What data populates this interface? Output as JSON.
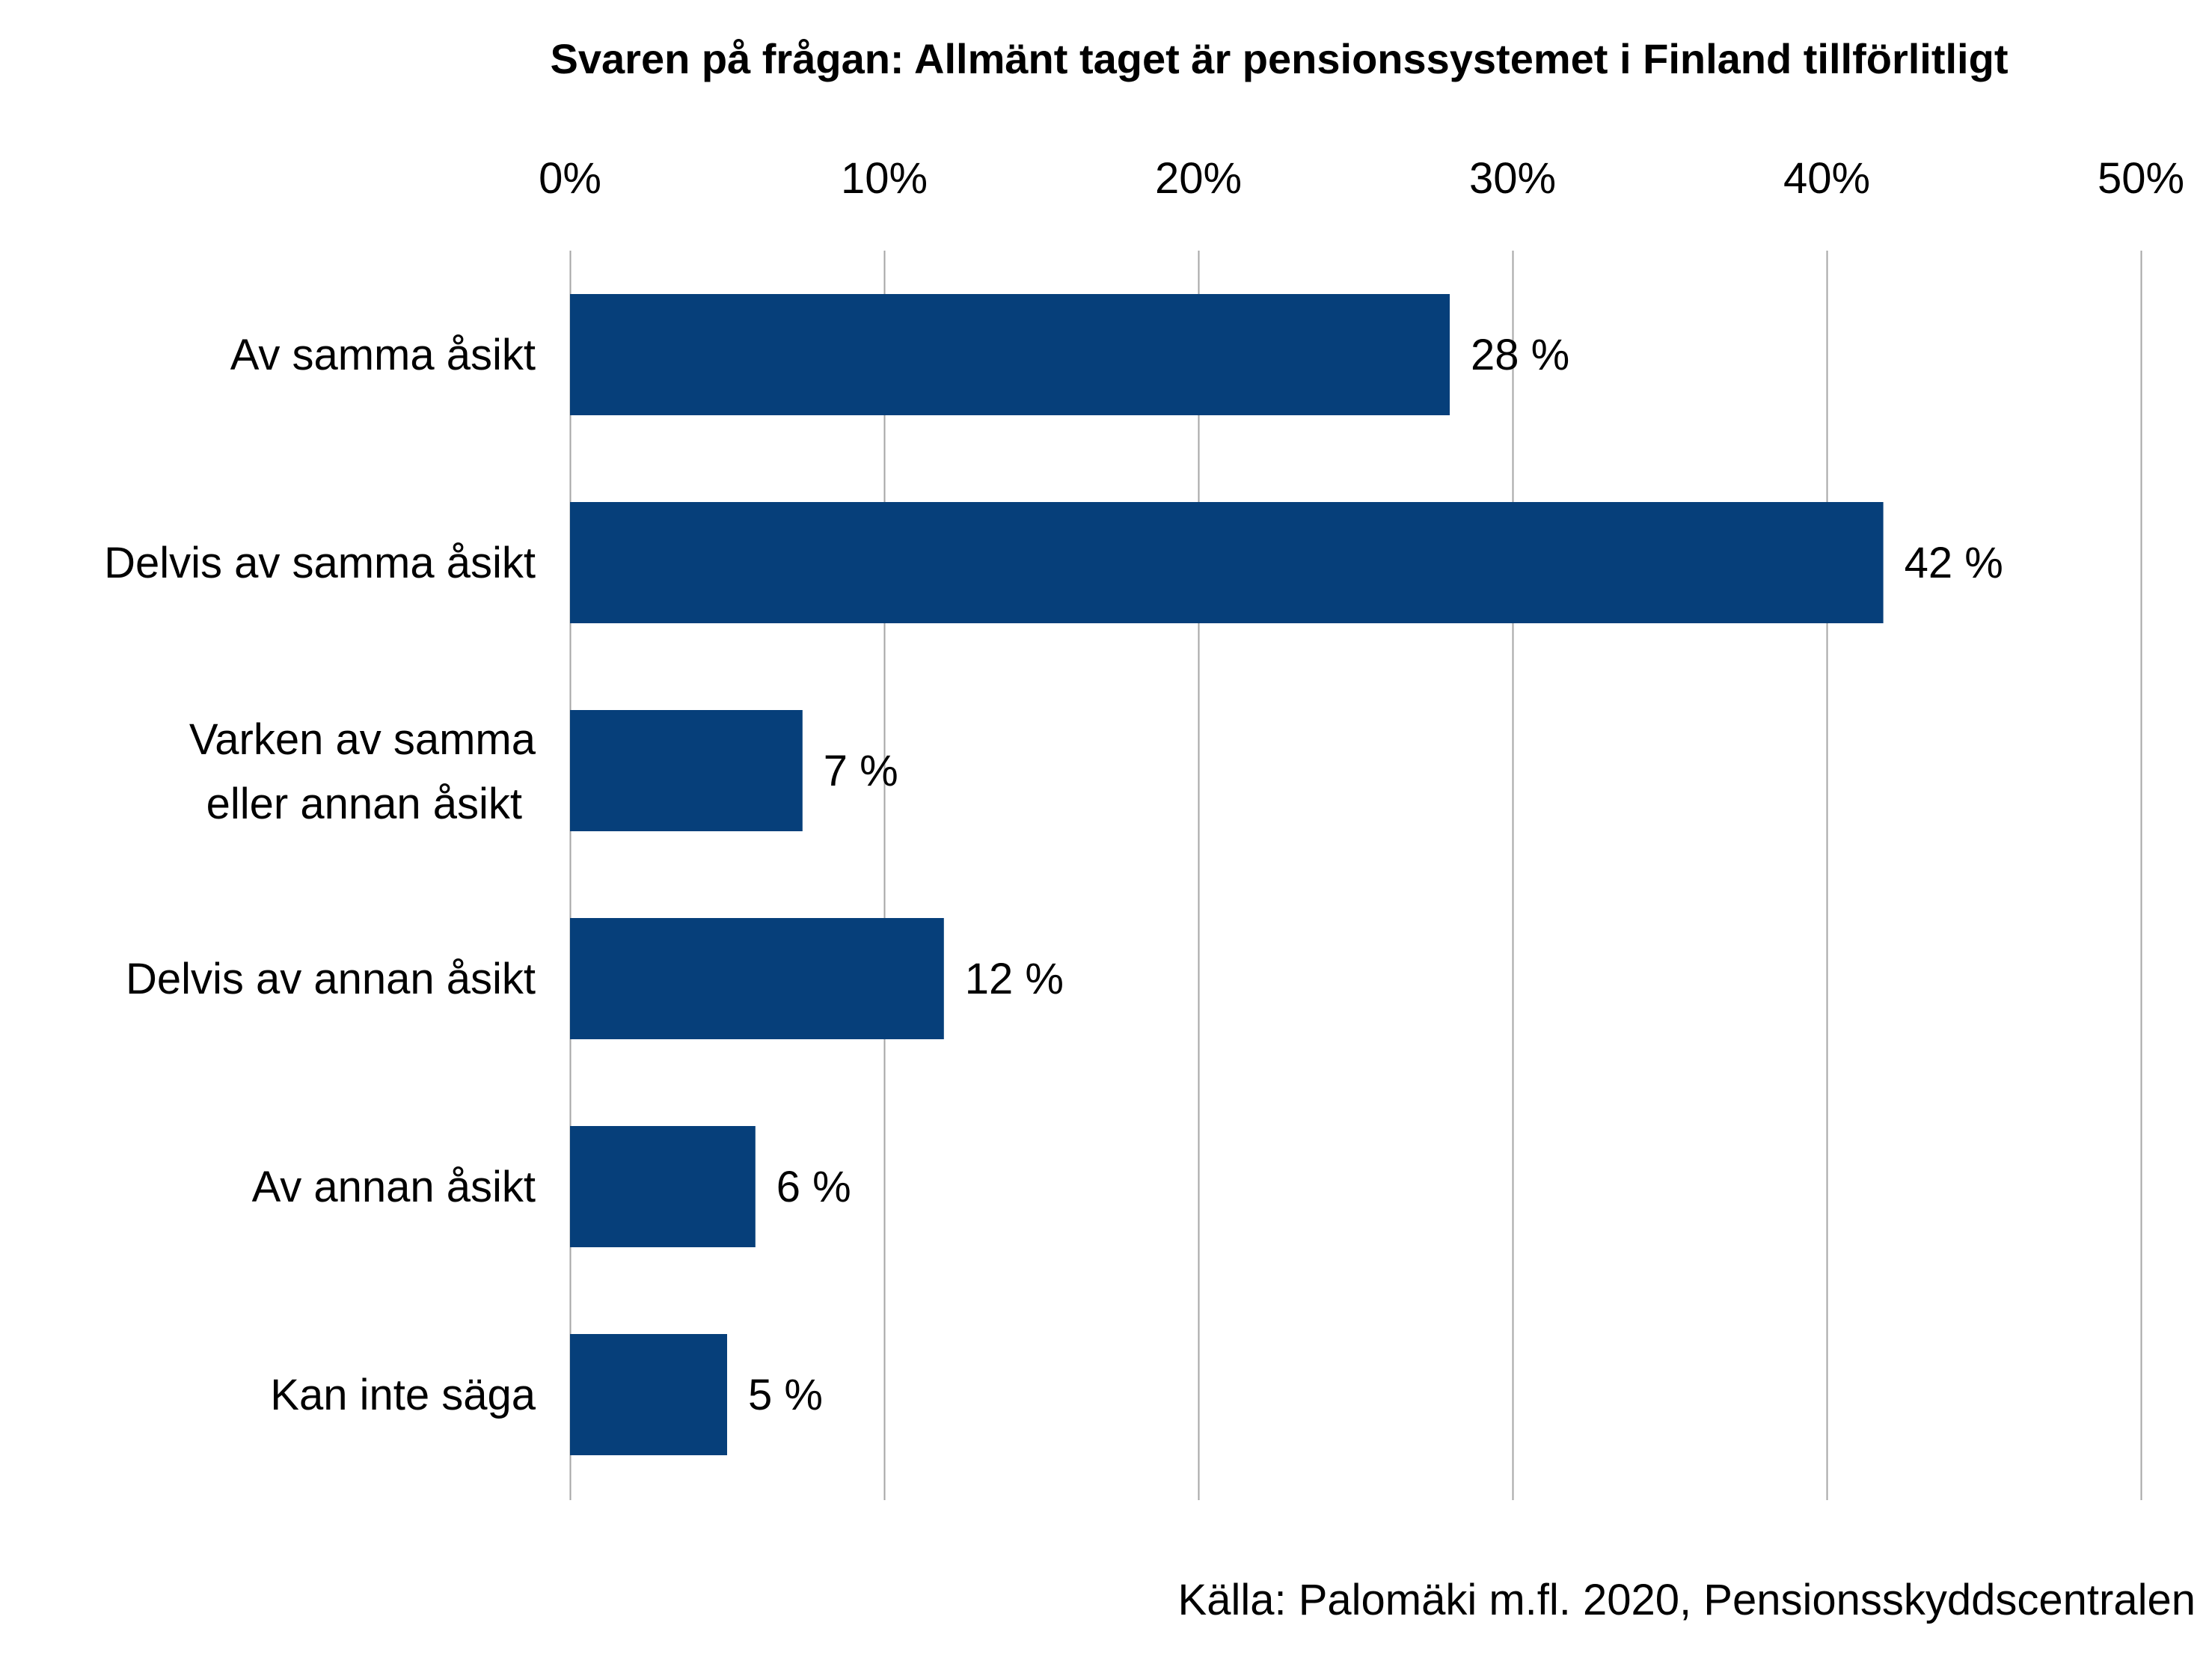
{
  "chart_data": {
    "type": "bar",
    "orientation": "horizontal",
    "title": "Svaren på frågan: Allmänt taget är pensionssystemet i Finland tillförlitligt",
    "categories": [
      "Av samma åsikt",
      "Delvis av samma åsikt",
      "Varken av samma eller annan åsikt",
      "Delvis av annan åsikt",
      "Av annan åsikt",
      "Kan inte säga"
    ],
    "values": [
      28,
      41.8,
      7.4,
      11.9,
      5.9,
      5
    ],
    "data_labels": [
      "28 %",
      "42 %",
      "7 %",
      "12 %",
      "6 %",
      "5 %"
    ],
    "xlim": [
      0,
      50
    ],
    "x_ticks": [
      0,
      10,
      20,
      30,
      40,
      50
    ],
    "x_tick_labels": [
      "0%",
      "10%",
      "20%",
      "30%",
      "40%",
      "50%"
    ],
    "x_axis_position": "top",
    "grid": true,
    "legend": "none",
    "bar_color": "#063f7a",
    "grid_color": "#a6a6a6"
  },
  "source": "Källa: Palomäki m.fl. 2020, Pensionsskyddscentralen"
}
